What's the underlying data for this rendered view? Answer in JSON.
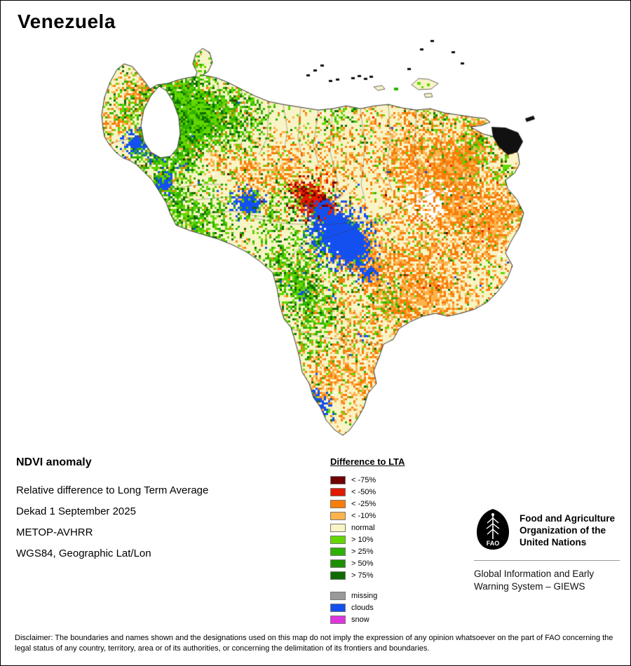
{
  "title": "Venezuela",
  "info": {
    "heading": "NDVI anomaly",
    "lines": [
      "Relative difference to Long Term Average",
      "Dekad 1 September 2025",
      "METOP-AVHRR",
      "WGS84, Geographic Lat/Lon"
    ]
  },
  "legend": {
    "title": "Difference to LTA",
    "items": [
      {
        "label": "< -75%",
        "color": "#700000"
      },
      {
        "label": "< -50%",
        "color": "#e01b00"
      },
      {
        "label": "< -25%",
        "color": "#f87d09"
      },
      {
        "label": "< -10%",
        "color": "#fcb34d"
      },
      {
        "label": "normal",
        "color": "#f8f4c6"
      },
      {
        "label": "> 10%",
        "color": "#63d600"
      },
      {
        "label": "> 25%",
        "color": "#2eb200"
      },
      {
        "label": "> 50%",
        "color": "#1d8f00"
      },
      {
        "label": "> 75%",
        "color": "#0f6b00"
      }
    ],
    "status_items": [
      {
        "label": "missing",
        "color": "#9a9a9a"
      },
      {
        "label": "clouds",
        "color": "#1450f0"
      },
      {
        "label": "snow",
        "color": "#df35df"
      }
    ]
  },
  "organization": {
    "logo_label": "FAO",
    "name": "Food and Agriculture\nOrganization of the\nUnited Nations",
    "program": "Global Information and Early\nWarning System – GIEWS"
  },
  "map": {
    "country": "Venezuela",
    "base_color": "#f8f4c6",
    "water_color": "#ffffff",
    "border_color": "#333333",
    "neighbor_color": "#111111"
  },
  "disclaimer": "Disclaimer: The boundaries and names shown and the designations used on this map do not imply the expression of any opinion whatsoever on the part of FAO concerning the legal status of any country, territory, area or of its authorities, or concerning the delimitation of its frontiers and boundaries."
}
